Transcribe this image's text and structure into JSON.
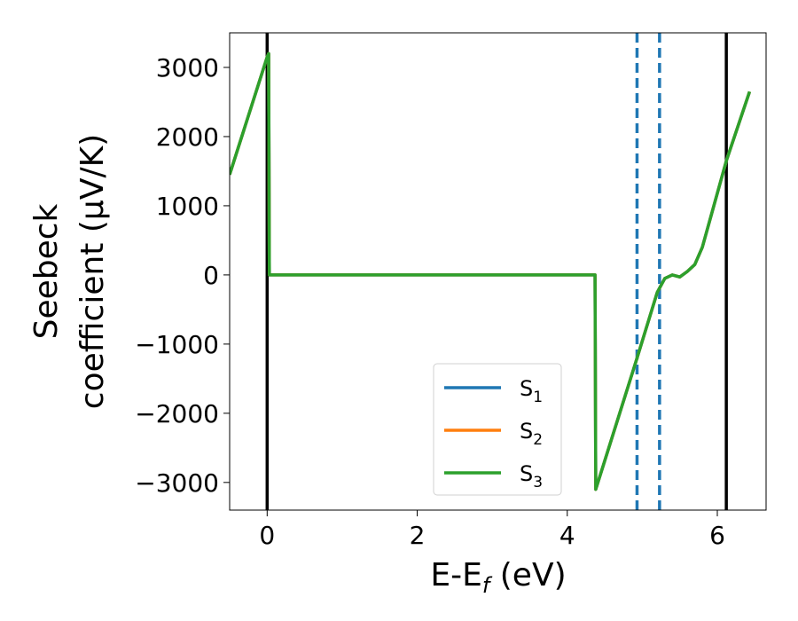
{
  "chart_data": {
    "type": "line",
    "xlabel": "E-E",
    "xlabel_sub": "f",
    "xlabel_unit": " (eV)",
    "ylabel_line1": "Seebeck",
    "ylabel_line2": "coefficient  (μV/K)",
    "xlim": [
      -0.5,
      6.65
    ],
    "ylim": [
      -3400,
      3500
    ],
    "xticks": [
      0,
      2,
      4,
      6
    ],
    "xtick_labels": [
      "0",
      "2",
      "4",
      "6"
    ],
    "yticks": [
      3000,
      2000,
      1000,
      0,
      -1000,
      -2000,
      -3000
    ],
    "ytick_labels": [
      "3000",
      "2000",
      "1000",
      "0",
      "−1000",
      "−2000",
      "−3000"
    ],
    "vlines_solid": [
      0.0,
      6.12
    ],
    "vlines_dashed": [
      4.93,
      5.23
    ],
    "legend_position": "lower center",
    "colors": {
      "S1": "#1f77b4",
      "S2": "#ff7f0e",
      "S3": "#2ca02c",
      "vline_solid": "#000000",
      "vline_dashed": "#1f77b4"
    },
    "series": [
      {
        "name": "S",
        "name_sub": "1",
        "color": "#1f77b4",
        "points": [
          [
            -0.5,
            1450
          ],
          [
            0.0,
            3150
          ],
          [
            0.02,
            3200
          ],
          [
            0.03,
            0
          ],
          [
            4.37,
            0
          ],
          [
            4.38,
            -3100
          ],
          [
            4.93,
            -1200
          ],
          [
            5.2,
            -250
          ],
          [
            5.3,
            -50
          ],
          [
            5.4,
            0
          ],
          [
            5.5,
            -30
          ],
          [
            5.6,
            50
          ],
          [
            5.7,
            150
          ],
          [
            5.8,
            400
          ],
          [
            6.12,
            1650
          ],
          [
            6.43,
            2650
          ]
        ]
      },
      {
        "name": "S",
        "name_sub": "2",
        "color": "#ff7f0e",
        "points": [
          [
            -0.5,
            1450
          ],
          [
            0.0,
            3150
          ],
          [
            0.02,
            3200
          ],
          [
            0.03,
            0
          ],
          [
            4.37,
            0
          ],
          [
            4.38,
            -3100
          ],
          [
            4.93,
            -1200
          ],
          [
            5.2,
            -250
          ],
          [
            5.3,
            -50
          ],
          [
            5.4,
            0
          ],
          [
            5.5,
            -30
          ],
          [
            5.6,
            50
          ],
          [
            5.7,
            150
          ],
          [
            5.8,
            400
          ],
          [
            6.12,
            1650
          ],
          [
            6.43,
            2650
          ]
        ]
      },
      {
        "name": "S",
        "name_sub": "3",
        "color": "#2ca02c",
        "points": [
          [
            -0.5,
            1450
          ],
          [
            0.0,
            3150
          ],
          [
            0.02,
            3200
          ],
          [
            0.03,
            0
          ],
          [
            4.37,
            0
          ],
          [
            4.38,
            -3100
          ],
          [
            4.93,
            -1200
          ],
          [
            5.2,
            -250
          ],
          [
            5.3,
            -50
          ],
          [
            5.4,
            0
          ],
          [
            5.5,
            -30
          ],
          [
            5.6,
            50
          ],
          [
            5.7,
            150
          ],
          [
            5.8,
            400
          ],
          [
            6.12,
            1650
          ],
          [
            6.43,
            2650
          ]
        ]
      }
    ]
  }
}
